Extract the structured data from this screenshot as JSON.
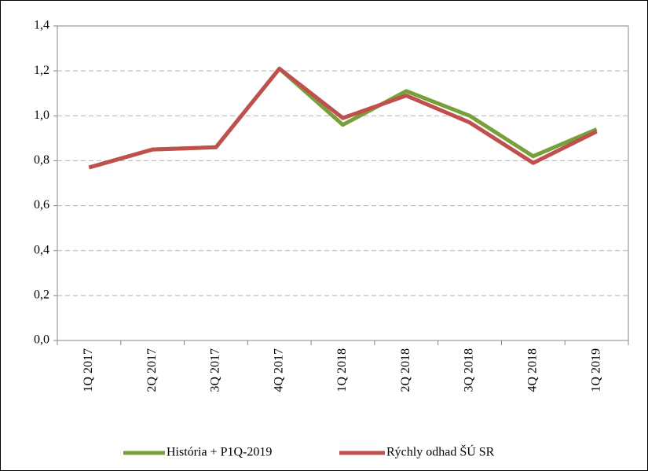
{
  "chart_data": {
    "type": "line",
    "categories": [
      "1Q 2017",
      "2Q 2017",
      "3Q 2017",
      "4Q 2017",
      "1Q 2018",
      "2Q 2018",
      "3Q 2018",
      "4Q 2018",
      "1Q 2019"
    ],
    "series": [
      {
        "name": "História + P1Q-2019",
        "color": "#77a03a",
        "values": [
          0.77,
          0.85,
          0.86,
          1.21,
          0.96,
          1.11,
          1.0,
          0.82,
          0.94
        ]
      },
      {
        "name": "Rýchly odhad ŠÚ SR",
        "color": "#c0504d",
        "values": [
          0.77,
          0.85,
          0.86,
          1.21,
          0.99,
          1.09,
          0.97,
          0.79,
          0.93
        ]
      }
    ],
    "ylim": [
      0,
      1.4
    ],
    "yticks": [
      {
        "value": 0,
        "label": "0,0"
      },
      {
        "value": 0.2,
        "label": "0,2"
      },
      {
        "value": 0.4,
        "label": "0,4"
      },
      {
        "value": 0.6,
        "label": "0,6"
      },
      {
        "value": 0.8,
        "label": "0,8"
      },
      {
        "value": 1.0,
        "label": "1,0"
      },
      {
        "value": 1.2,
        "label": "1,2"
      },
      {
        "value": 1.4,
        "label": "1,4"
      }
    ],
    "grid": true,
    "legend": "bottom"
  }
}
